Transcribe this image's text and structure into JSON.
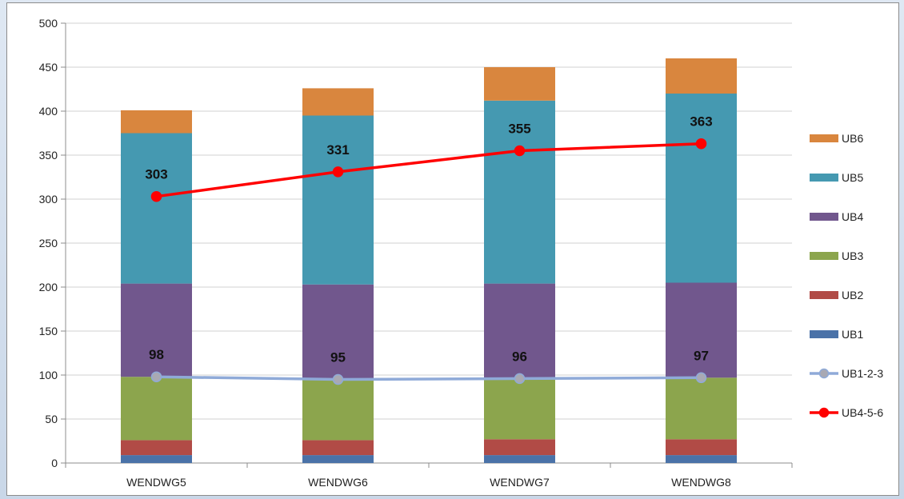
{
  "chart_data": {
    "type": "bar",
    "stacked": true,
    "categories": [
      "WENDWG5",
      "WENDWG6",
      "WENDWG7",
      "WENDWG8"
    ],
    "ylim": [
      0,
      500
    ],
    "yticks": [
      0,
      50,
      100,
      150,
      200,
      250,
      300,
      350,
      400,
      450,
      500
    ],
    "grid": true,
    "legend_position": "right",
    "title": "",
    "xlabel": "",
    "ylabel": "",
    "series": [
      {
        "name": "UB1",
        "kind": "bar",
        "color": "#4a72a8",
        "values": [
          9,
          9,
          9,
          9
        ]
      },
      {
        "name": "UB2",
        "kind": "bar",
        "color": "#b14b46",
        "values": [
          17,
          17,
          18,
          18
        ]
      },
      {
        "name": "UB3",
        "kind": "bar",
        "color": "#8ca54d",
        "values": [
          72,
          69,
          69,
          70
        ]
      },
      {
        "name": "UB4",
        "kind": "bar",
        "color": "#71578d",
        "values": [
          106,
          108,
          108,
          108
        ]
      },
      {
        "name": "UB5",
        "kind": "bar",
        "color": "#4599b1",
        "values": [
          171,
          192,
          208,
          215
        ]
      },
      {
        "name": "UB6",
        "kind": "bar",
        "color": "#d9863e",
        "values": [
          26,
          31,
          38,
          40
        ]
      },
      {
        "name": "UB1-2-3",
        "kind": "line",
        "color": "#8faad8",
        "marker_color": "#a9a9b3",
        "values": [
          98,
          95,
          96,
          97
        ],
        "labels": [
          "98",
          "95",
          "96",
          "97"
        ]
      },
      {
        "name": "UB4-5-6",
        "kind": "line",
        "color": "#ff0000",
        "marker_color": "#ff0000",
        "values": [
          303,
          331,
          355,
          363
        ],
        "labels": [
          "303",
          "331",
          "355",
          "363"
        ]
      }
    ],
    "legend_order": [
      "UB6",
      "UB5",
      "UB4",
      "UB3",
      "UB2",
      "UB1",
      "UB1-2-3",
      "UB4-5-6"
    ]
  }
}
